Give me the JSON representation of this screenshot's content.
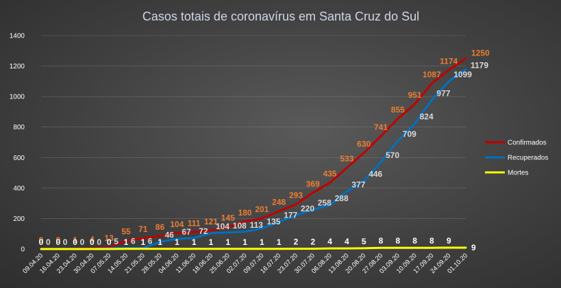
{
  "chart_data": {
    "type": "line",
    "title": "Casos totais de coronavírus  em Santa Cruz do Sul",
    "xlabel": "",
    "ylabel": "",
    "ylim": [
      0,
      1400
    ],
    "yticks": [
      0,
      200,
      400,
      600,
      800,
      1000,
      1200,
      1400
    ],
    "grid": true,
    "legend_position": "right",
    "x": [
      "09.04.20",
      "16.04.20",
      "23.04.20",
      "30.04.20",
      "07.05.20",
      "14.05.20",
      "21.05.20",
      "28.05.20",
      "04.06.20",
      "11.06.20",
      "18.06.20",
      "25.06.20",
      "02.07.20",
      "09.07.20",
      "16.07.20",
      "23.07.20",
      "30.07.20",
      "06.08.20",
      "13.08.20",
      "20.08.20",
      "27.08.20",
      "03.09.20",
      "10.09.20",
      "17.09.20",
      "24.09.20",
      "01.10.20"
    ],
    "series": [
      {
        "name": "Confirmados",
        "color": "#c00000",
        "label_color": "#ed7d31",
        "values": [
          0,
          0,
          1,
          4,
          13,
          55,
          71,
          86,
          104,
          111,
          121,
          145,
          180,
          201,
          248,
          293,
          369,
          435,
          533,
          630,
          741,
          855,
          951,
          1087,
          1174,
          1250
        ]
      },
      {
        "name": "Recuperados",
        "color": "#0070c0",
        "label_color": "#d9d9d9",
        "values": [
          0,
          0,
          0,
          0,
          5,
          6,
          6,
          46,
          67,
          72,
          104,
          108,
          113,
          135,
          177,
          220,
          258,
          288,
          377,
          446,
          570,
          709,
          824,
          977,
          1099,
          1179
        ]
      },
      {
        "name": "Mortes",
        "color": "#ffff00",
        "label_color": "#ffffff",
        "values": [
          0,
          0,
          0,
          0,
          0,
          1,
          1,
          1,
          1,
          1,
          1,
          1,
          1,
          1,
          1,
          2,
          2,
          4,
          4,
          5,
          8,
          8,
          8,
          8,
          9,
          9
        ]
      }
    ]
  }
}
